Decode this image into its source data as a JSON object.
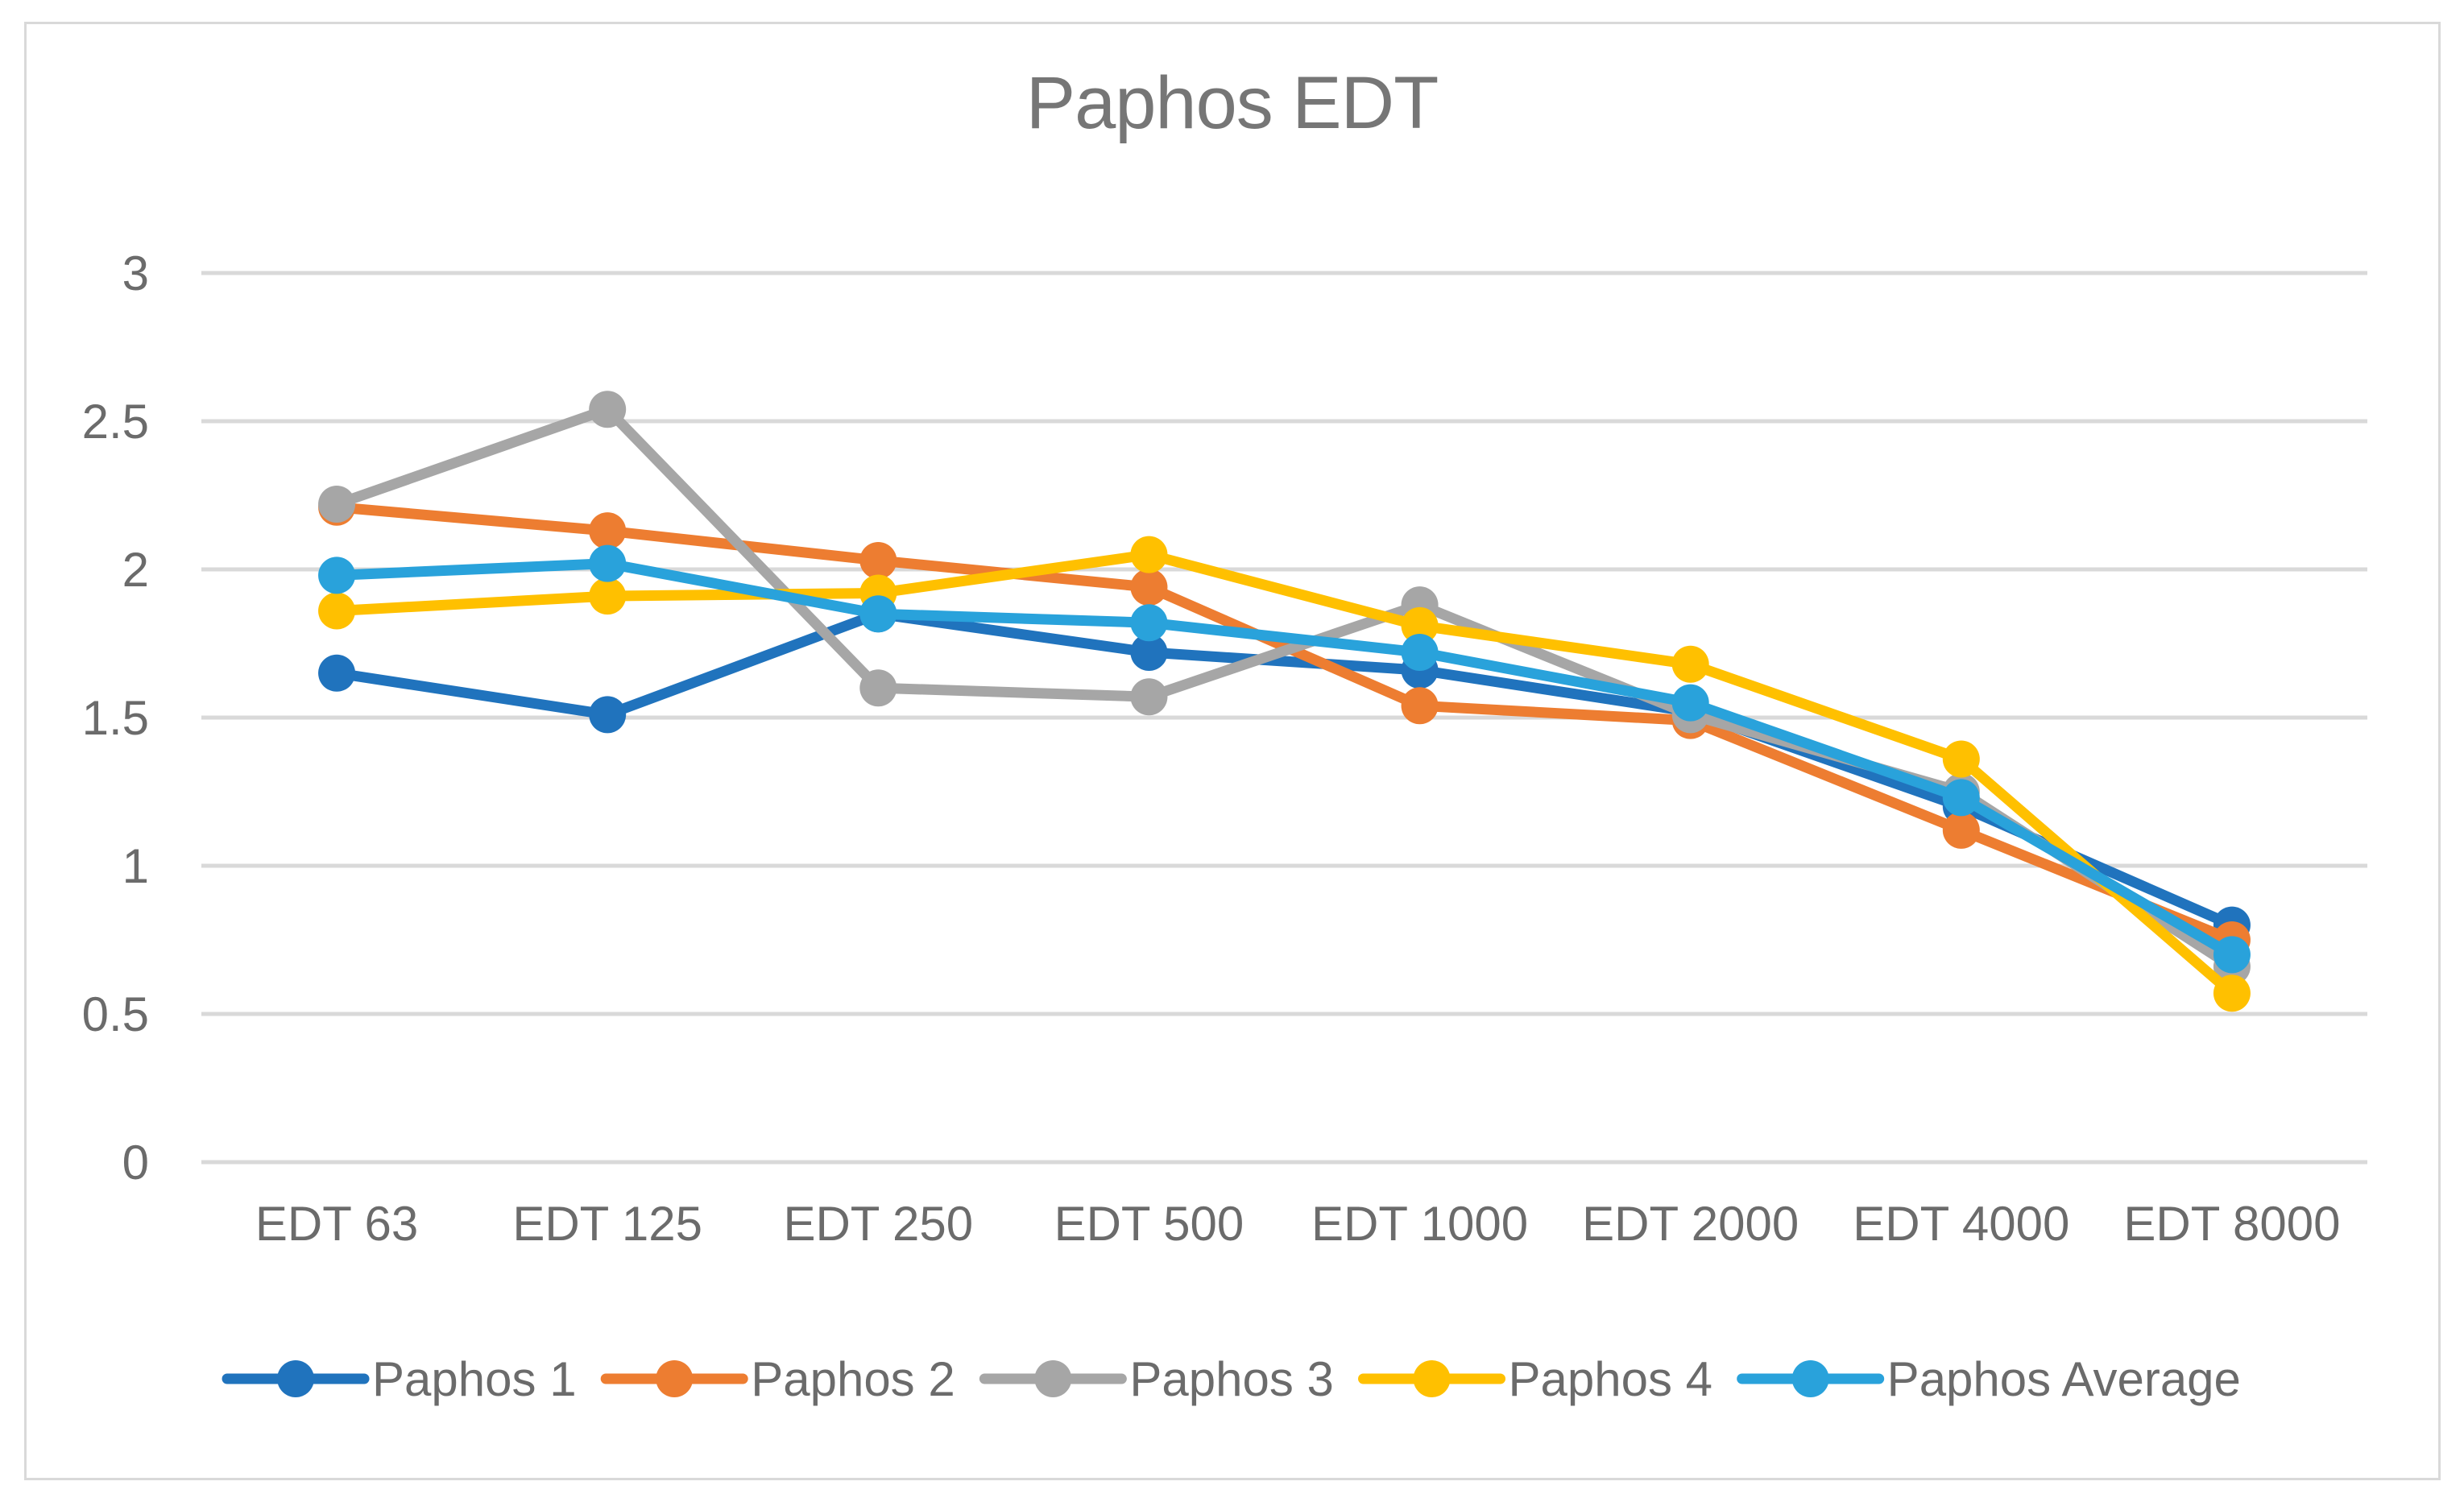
{
  "chart_data": {
    "type": "line",
    "title": "Paphos EDT",
    "categories": [
      "EDT 63",
      "EDT 125",
      "EDT 250",
      "EDT 500",
      "EDT 1000",
      "EDT 2000",
      "EDT 4000",
      "EDT 8000"
    ],
    "series": [
      {
        "name": "Paphos 1",
        "color": "#2073BD",
        "values": [
          1.65,
          1.51,
          1.85,
          1.72,
          1.66,
          1.52,
          1.2,
          0.8
        ]
      },
      {
        "name": "Paphos 2",
        "color": "#ED7D31",
        "values": [
          2.21,
          2.13,
          2.03,
          1.94,
          1.54,
          1.49,
          1.12,
          0.75
        ]
      },
      {
        "name": "Paphos 3",
        "color": "#A6A6A6",
        "values": [
          2.22,
          2.54,
          1.6,
          1.57,
          1.88,
          1.51,
          1.25,
          0.66
        ]
      },
      {
        "name": "Paphos 4",
        "color": "#FFC000",
        "values": [
          1.86,
          1.91,
          1.92,
          2.05,
          1.81,
          1.68,
          1.36,
          0.57
        ]
      },
      {
        "name": "Paphos Average",
        "color": "#29A2DB",
        "values": [
          1.98,
          2.02,
          1.85,
          1.82,
          1.72,
          1.55,
          1.23,
          0.7
        ]
      }
    ],
    "xlabel": "",
    "ylabel": "",
    "ylim": [
      0,
      3
    ],
    "y_tick_step": 0.5,
    "y_tick_labels": [
      "0",
      "0.5",
      "1",
      "1.5",
      "2",
      "2.5",
      "3"
    ],
    "grid": "horizontal",
    "legend_position": "bottom",
    "colors": {
      "gridline": "#D9D9D9",
      "frame_border": "#D9D9D9",
      "title_text": "#767676",
      "axis_text": "#6B6B6B",
      "background": "#FFFFFF"
    }
  }
}
